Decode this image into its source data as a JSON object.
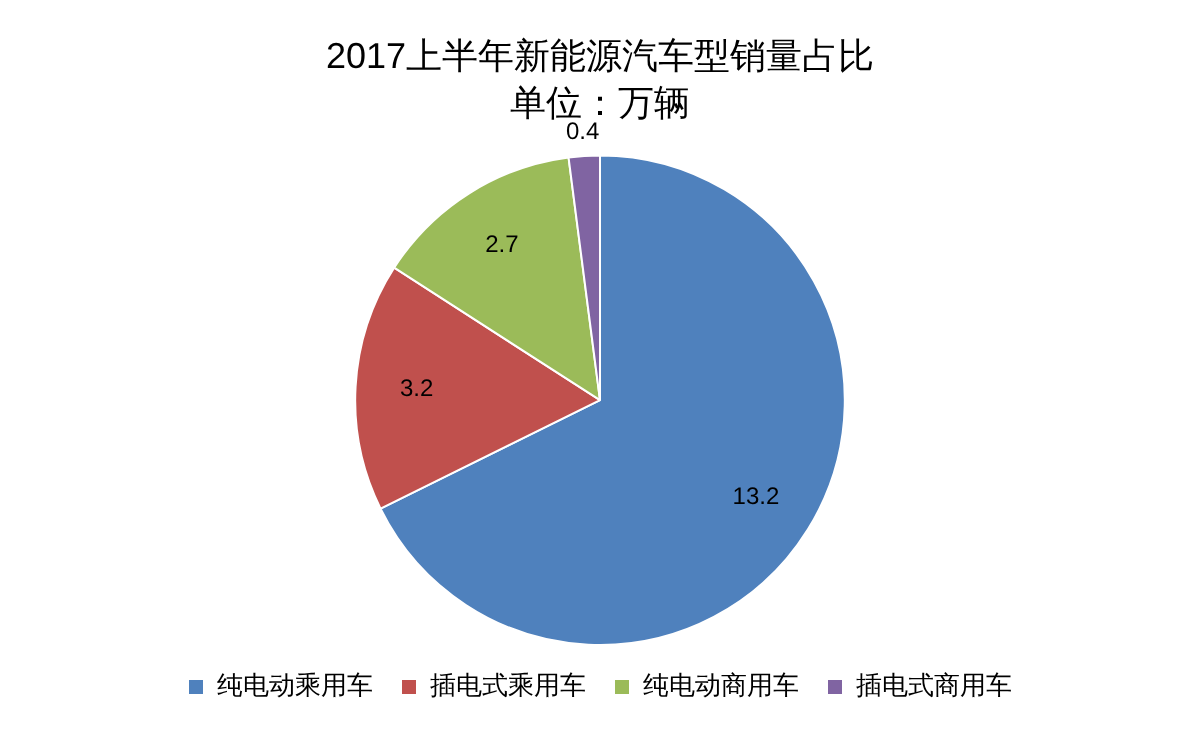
{
  "chart_data": {
    "type": "pie",
    "title": "2017上半年新能源汽车型销量占比",
    "subtitle": "单位：万辆",
    "categories": [
      "纯电动乘用车",
      "插电式乘用车",
      "纯电动商用车",
      "插电式商用车"
    ],
    "values": [
      13.2,
      3.2,
      2.7,
      0.4
    ],
    "colors": [
      "#4f81bd",
      "#c0504d",
      "#9bbb59",
      "#8064a2"
    ],
    "data_labels": true,
    "legend": "bottom"
  }
}
